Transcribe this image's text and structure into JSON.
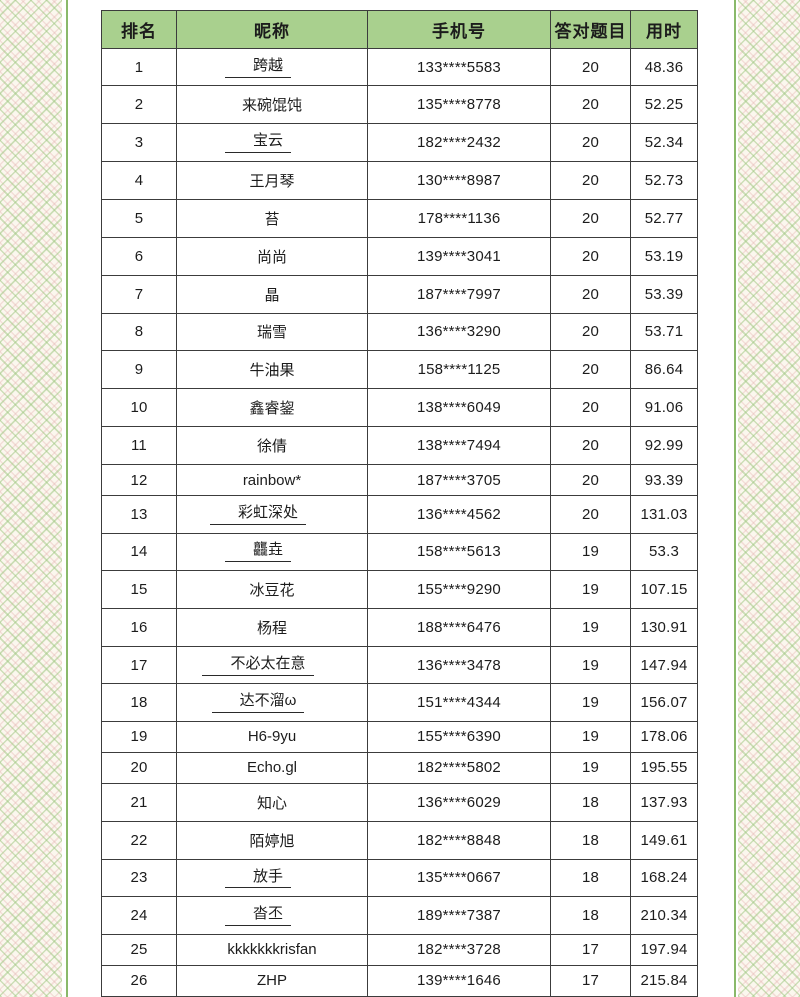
{
  "colors": {
    "header_green": "#A9D08E",
    "table_border": "#3C3C3C",
    "side_line_green": "#8AB96A",
    "pattern_green": "#9EC680",
    "pattern_pink": "#E0A6A6",
    "text": "#1C1C1C"
  },
  "table": {
    "headers": [
      "排名",
      "昵称",
      "手机号",
      "答对题目",
      "用时"
    ],
    "rows": [
      {
        "rank": "1",
        "nickname": "跨越",
        "underline": true,
        "phone": "133****5583",
        "correct": "20",
        "time": "48.36"
      },
      {
        "rank": "2",
        "nickname": "来碗馄饨",
        "underline": false,
        "phone": "135****8778",
        "correct": "20",
        "time": "52.25"
      },
      {
        "rank": "3",
        "nickname": "宝云",
        "underline": true,
        "phone": "182****2432",
        "correct": "20",
        "time": "52.34"
      },
      {
        "rank": "4",
        "nickname": "王月琴",
        "underline": false,
        "phone": "130****8987",
        "correct": "20",
        "time": "52.73"
      },
      {
        "rank": "5",
        "nickname": "苔",
        "underline": false,
        "phone": "178****1136",
        "correct": "20",
        "time": "52.77"
      },
      {
        "rank": "6",
        "nickname": "尚尚",
        "underline": false,
        "phone": "139****3041",
        "correct": "20",
        "time": "53.19"
      },
      {
        "rank": "7",
        "nickname": "晶",
        "underline": false,
        "phone": "187****7997",
        "correct": "20",
        "time": "53.39"
      },
      {
        "rank": "8",
        "nickname": "瑞雪",
        "underline": false,
        "phone": "136****3290",
        "correct": "20",
        "time": "53.71"
      },
      {
        "rank": "9",
        "nickname": "牛油果",
        "underline": false,
        "phone": "158****1125",
        "correct": "20",
        "time": "86.64"
      },
      {
        "rank": "10",
        "nickname": "鑫睿鋆",
        "underline": false,
        "phone": "138****6049",
        "correct": "20",
        "time": "91.06"
      },
      {
        "rank": "11",
        "nickname": "徐倩",
        "underline": false,
        "phone": "138****7494",
        "correct": "20",
        "time": "92.99"
      },
      {
        "rank": "12",
        "nickname": "rainbow*",
        "underline": false,
        "phone": "187****3705",
        "correct": "20",
        "time": "93.39"
      },
      {
        "rank": "13",
        "nickname": "彩虹深处",
        "underline": true,
        "phone": "136****4562",
        "correct": "20",
        "time": "131.03"
      },
      {
        "rank": "14",
        "nickname": "龘垚",
        "underline": true,
        "phone": "158****5613",
        "correct": "19",
        "time": "53.3"
      },
      {
        "rank": "15",
        "nickname": "冰豆花",
        "underline": false,
        "phone": "155****9290",
        "correct": "19",
        "time": "107.15"
      },
      {
        "rank": "16",
        "nickname": "杨程",
        "underline": false,
        "phone": "188****6476",
        "correct": "19",
        "time": "130.91"
      },
      {
        "rank": "17",
        "nickname": "不必太在意",
        "underline": true,
        "phone": "136****3478",
        "correct": "19",
        "time": "147.94"
      },
      {
        "rank": "18",
        "nickname": "达不溜ω",
        "underline": true,
        "phone": "151****4344",
        "correct": "19",
        "time": "156.07"
      },
      {
        "rank": "19",
        "nickname": "H6-9yu",
        "underline": false,
        "phone": "155****6390",
        "correct": "19",
        "time": "178.06"
      },
      {
        "rank": "20",
        "nickname": "Echo.gl",
        "underline": false,
        "phone": "182****5802",
        "correct": "19",
        "time": "195.55"
      },
      {
        "rank": "21",
        "nickname": "知心",
        "underline": false,
        "phone": "136****6029",
        "correct": "18",
        "time": "137.93"
      },
      {
        "rank": "22",
        "nickname": "陌婷旭",
        "underline": false,
        "phone": "182****8848",
        "correct": "18",
        "time": "149.61"
      },
      {
        "rank": "23",
        "nickname": "放手",
        "underline": true,
        "phone": "135****0667",
        "correct": "18",
        "time": "168.24"
      },
      {
        "rank": "24",
        "nickname": "沓丕",
        "underline": true,
        "phone": "189****7387",
        "correct": "18",
        "time": "210.34"
      },
      {
        "rank": "25",
        "nickname": "kkkkkkkrisfan",
        "underline": false,
        "phone": "182****3728",
        "correct": "17",
        "time": "197.94"
      },
      {
        "rank": "26",
        "nickname": "ZHP",
        "underline": false,
        "phone": "139****1646",
        "correct": "17",
        "time": "215.84"
      }
    ]
  }
}
